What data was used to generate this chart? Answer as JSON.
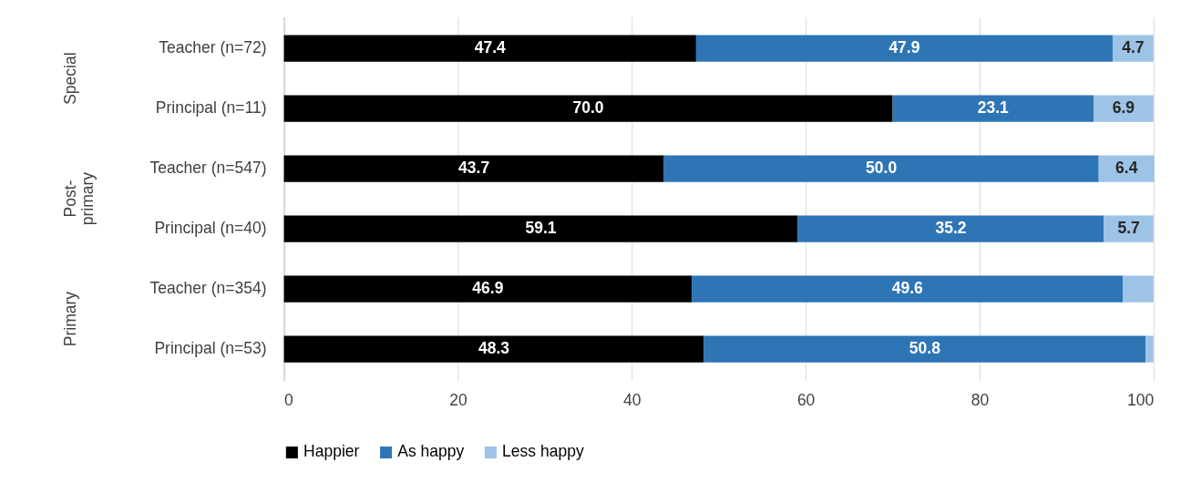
{
  "chart_data": {
    "type": "bar",
    "orientation": "horizontal",
    "stacked": true,
    "categories": [
      "Teacher (n=72)",
      "Principal (n=11)",
      "Teacher (n=547)",
      "Principal (n=40)",
      "Teacher (n=354)",
      "Principal (n=53)"
    ],
    "series": [
      {
        "name": "Happier",
        "color": "#000000",
        "values": [
          47.4,
          70.0,
          43.7,
          59.1,
          46.9,
          48.3
        ],
        "value_labels": [
          "47.4",
          "70.0",
          "43.7",
          "59.1",
          "46.9",
          "48.3"
        ]
      },
      {
        "name": "As happy",
        "color": "#2e75b6",
        "values": [
          47.9,
          23.1,
          50.0,
          35.2,
          49.6,
          50.8
        ],
        "value_labels": [
          "47.9",
          "23.1",
          "50.0",
          "35.2",
          "49.6",
          "50.8"
        ]
      },
      {
        "name": "Less happy",
        "color": "#9dc3e6",
        "values": [
          4.7,
          6.9,
          6.4,
          5.7,
          3.5,
          0.9
        ],
        "value_labels": [
          "4.7",
          "6.9",
          "6.4",
          "5.7",
          null,
          null
        ]
      }
    ],
    "annotations": [
      "Special",
      "Post-\nprimary",
      "Primary"
    ],
    "xlim": [
      0,
      100
    ],
    "xticks": [
      0,
      20,
      40,
      60,
      80,
      100
    ],
    "grid": "x",
    "legend": "bottom"
  }
}
